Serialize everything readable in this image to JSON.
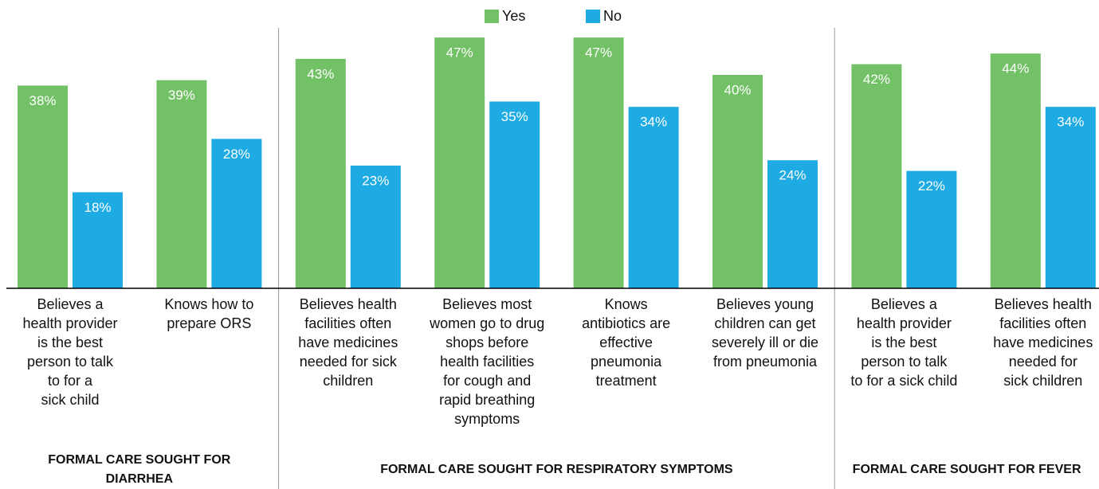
{
  "chart_data": {
    "type": "bar",
    "groups": [
      {
        "name": "FORMAL CARE SOUGHT FOR DIARRHEA",
        "categories": [
          "Believes a\nhealth provider\nis the best\nperson to talk\nto for a\nsick child",
          "Knows how to\nprepare ORS"
        ]
      },
      {
        "name": "FORMAL CARE SOUGHT FOR RESPIRATORY SYMPTOMS",
        "categories": [
          "Believes health\nfacilities often\nhave medicines\nneeded for sick\nchildren",
          "Believes most\nwomen go to drug\nshops before\nhealth facilities\nfor cough and\nrapid breathing\nsymptoms",
          "Knows\nantibiotics are\neffective\npneumonia\ntreatment",
          "Believes young\nchildren can get\nseverely ill or die\nfrom pneumonia"
        ]
      },
      {
        "name": "FORMAL CARE SOUGHT FOR FEVER",
        "categories": [
          "Believes a\nhealth provider\nis the best\nperson to talk\nto for a sick child",
          "Believes health\nfacilities often\nhave medicines\nneeded for\nsick children"
        ]
      }
    ],
    "series": [
      {
        "name": "Yes",
        "color": "#73c167",
        "values": [
          38,
          39,
          43,
          47,
          47,
          40,
          42,
          44
        ],
        "value_labels": [
          "38%",
          "39%",
          "43%",
          "47%",
          "47%",
          "40%",
          "42%",
          "44%"
        ]
      },
      {
        "name": "No",
        "color": "#1eaae2",
        "values": [
          18,
          28,
          23,
          35,
          34,
          24,
          22,
          34
        ],
        "value_labels": [
          "18%",
          "28%",
          "23%",
          "35%",
          "34%",
          "24%",
          "22%",
          "34%"
        ]
      }
    ],
    "ylim": [
      0,
      50
    ],
    "legend": "top"
  }
}
